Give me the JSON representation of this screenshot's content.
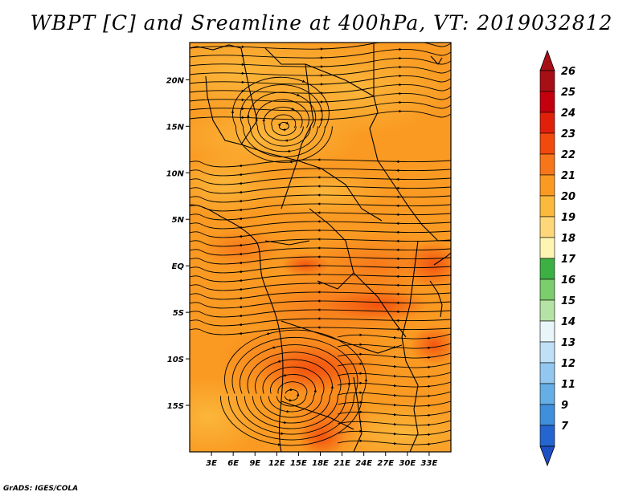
{
  "title": "WBPT [C] and Sreamline at 400hPa, VT: 2019032812",
  "credit": "GrADS: IGES/COLA",
  "map": {
    "lon_range": [
      0,
      36
    ],
    "lat_range": [
      -20,
      24
    ],
    "lat_ticks": [
      {
        "value": 20,
        "label": "20N"
      },
      {
        "value": 15,
        "label": "15N"
      },
      {
        "value": 10,
        "label": "10N"
      },
      {
        "value": 5,
        "label": "5N"
      },
      {
        "value": 0,
        "label": "EQ"
      },
      {
        "value": -5,
        "label": "5S"
      },
      {
        "value": -10,
        "label": "10S"
      },
      {
        "value": -15,
        "label": "15S"
      }
    ],
    "lon_ticks": [
      {
        "value": 3,
        "label": "3E"
      },
      {
        "value": 6,
        "label": "6E"
      },
      {
        "value": 9,
        "label": "9E"
      },
      {
        "value": 12,
        "label": "12E"
      },
      {
        "value": 15,
        "label": "15E"
      },
      {
        "value": 18,
        "label": "18E"
      },
      {
        "value": 21,
        "label": "21E"
      },
      {
        "value": 24,
        "label": "24E"
      },
      {
        "value": 27,
        "label": "27E"
      },
      {
        "value": 30,
        "label": "30E"
      },
      {
        "value": 33,
        "label": "33E"
      }
    ]
  },
  "colorbar": {
    "levels": [
      {
        "label": "26",
        "color": "#a50f15"
      },
      {
        "label": "25",
        "color": "#c4000e"
      },
      {
        "label": "24",
        "color": "#e0200a"
      },
      {
        "label": "23",
        "color": "#f24a0c"
      },
      {
        "label": "22",
        "color": "#f7761a"
      },
      {
        "label": "21",
        "color": "#fa9a22"
      },
      {
        "label": "20",
        "color": "#fbb93d"
      },
      {
        "label": "19",
        "color": "#fdd77a"
      },
      {
        "label": "18",
        "color": "#fff5b3"
      },
      {
        "label": "17",
        "color": "#3cb043"
      },
      {
        "label": "16",
        "color": "#7ccd6b"
      },
      {
        "label": "15",
        "color": "#b5e3a5"
      },
      {
        "label": "14",
        "color": "#e8f6f9"
      },
      {
        "label": "13",
        "color": "#bfe0f6"
      },
      {
        "label": "12",
        "color": "#92c8ef"
      },
      {
        "label": "11",
        "color": "#66aee6"
      },
      {
        "label": "9",
        "color": "#3f8fdc"
      },
      {
        "label": "7",
        "color": "#2565cf"
      }
    ],
    "bottom_color": "#1d4fc4"
  }
}
